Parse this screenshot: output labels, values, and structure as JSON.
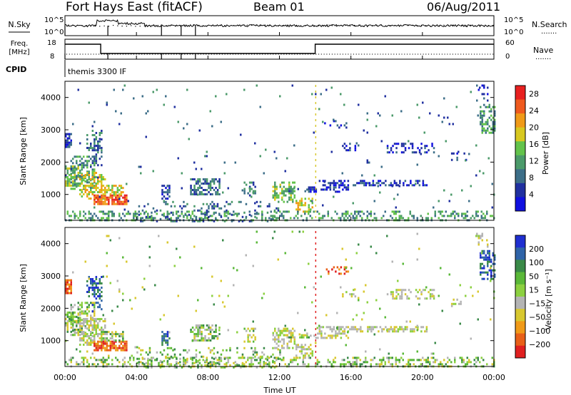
{
  "header": {
    "title": "Fort Hays East (fitACF)",
    "beam": "Beam 01",
    "date": "06/Aug/2011"
  },
  "panels": {
    "nsky": {
      "left_label": "N.Sky",
      "right_label": "N.Search",
      "tick_top": "10^5",
      "tick_bottom": "10^0"
    },
    "freq": {
      "label_line1": "Freq.",
      "label_line2": "[MHz]",
      "right_label": "Nave",
      "left_ticks": [
        "18",
        "8"
      ],
      "right_ticks": [
        "60",
        "0"
      ]
    },
    "cpid": {
      "label": "CPID",
      "value": "themis 3300 IF"
    }
  },
  "chart_data": [
    {
      "type": "heatmap",
      "name": "power",
      "ylabel": "Slant Range [km]",
      "xlabel": "Time UT",
      "y_ticks": [
        "1000",
        "2000",
        "3000",
        "4000"
      ],
      "ylim": [
        200,
        4500
      ],
      "colorbar_label": "Power [dB]",
      "colorbar_ticks": [
        "4",
        "8",
        "12",
        "16",
        "20",
        "24",
        "28"
      ],
      "colorbar_range": [
        0,
        30
      ],
      "colors": [
        "#1010e0",
        "#2030a0",
        "#3c6e88",
        "#4b9a6a",
        "#63c34b",
        "#d8c820",
        "#f09a18",
        "#ef5a1e",
        "#e82020"
      ]
    },
    {
      "type": "heatmap",
      "name": "velocity",
      "ylabel": "Slant Range [km]",
      "xlabel": "Time UT",
      "y_ticks": [
        "1000",
        "2000",
        "3000",
        "4000"
      ],
      "ylim": [
        200,
        4500
      ],
      "colorbar_label": "Velocity [m s⁻¹]",
      "colorbar_ticks": [
        "200",
        "100",
        "50",
        "15",
        "−15",
        "−50",
        "−100",
        "−200"
      ],
      "colorbar_range": [
        -250,
        250
      ],
      "colors": [
        "#1f2fd0",
        "#2f64a8",
        "#3a8a48",
        "#5ab838",
        "#8cd040",
        "#b4b4b4",
        "#d8c830",
        "#f09a18",
        "#e86018",
        "#e02020"
      ]
    }
  ],
  "x_axis": {
    "label": "Time UT",
    "ticks": [
      "00:00",
      "04:00",
      "08:00",
      "12:00",
      "16:00",
      "20:00",
      "00:00"
    ],
    "range_hours": [
      0,
      24
    ]
  },
  "legend_dotted": "·······"
}
